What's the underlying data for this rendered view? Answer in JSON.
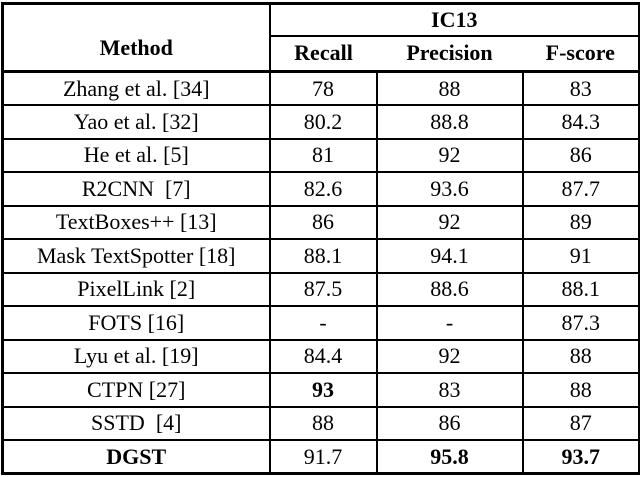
{
  "table": {
    "header": {
      "method_label": "Method",
      "group_label": "IC13",
      "columns": [
        "Recall",
        "Precision",
        "F-score"
      ]
    },
    "rows": [
      {
        "method": "Zhang et al. [34]",
        "recall": "78",
        "precision": "88",
        "fscore": "83",
        "bold": []
      },
      {
        "method": "Yao et al. [32]",
        "recall": "80.2",
        "precision": "88.8",
        "fscore": "84.3",
        "bold": []
      },
      {
        "method": "He et al. [5]",
        "recall": "81",
        "precision": "92",
        "fscore": "86",
        "bold": []
      },
      {
        "method": "R2CNN  [7]",
        "recall": "82.6",
        "precision": "93.6",
        "fscore": "87.7",
        "bold": []
      },
      {
        "method": "TextBoxes++ [13]",
        "recall": "86",
        "precision": "92",
        "fscore": "89",
        "bold": []
      },
      {
        "method": "Mask TextSpotter [18]",
        "recall": "88.1",
        "precision": "94.1",
        "fscore": "91",
        "bold": []
      },
      {
        "method": "PixelLink [2]",
        "recall": "87.5",
        "precision": "88.6",
        "fscore": "88.1",
        "bold": []
      },
      {
        "method": "FOTS [16]",
        "recall": "-",
        "precision": "-",
        "fscore": "87.3",
        "bold": []
      },
      {
        "method": "Lyu et al. [19]",
        "recall": "84.4",
        "precision": "92",
        "fscore": "88",
        "bold": []
      },
      {
        "method": "CTPN [27]",
        "recall": "93",
        "precision": "83",
        "fscore": "88",
        "bold": [
          "recall"
        ]
      },
      {
        "method": "SSTD  [4]",
        "recall": "88",
        "precision": "86",
        "fscore": "87",
        "bold": []
      },
      {
        "method": "DGST",
        "recall": "91.7",
        "precision": "95.8",
        "fscore": "93.7",
        "bold": [
          "method",
          "precision",
          "fscore"
        ]
      }
    ]
  },
  "colors": {
    "border": "#000000",
    "text": "#000000",
    "background": "#ffffff"
  }
}
